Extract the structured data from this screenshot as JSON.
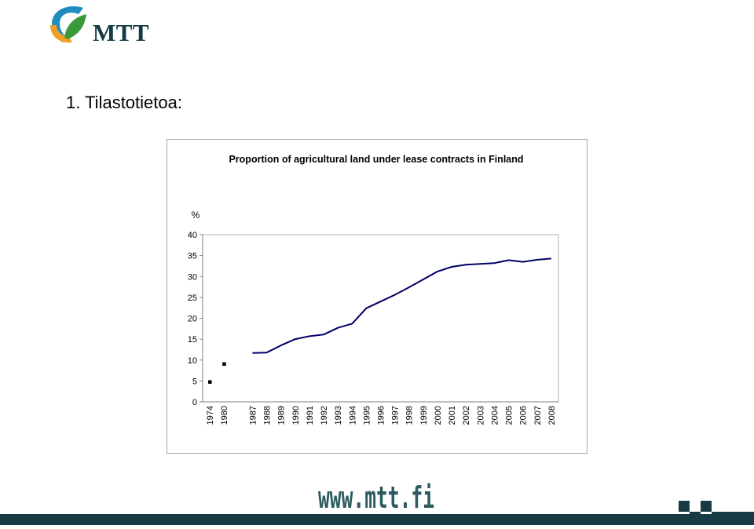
{
  "logo": {
    "text": "MTT"
  },
  "heading": "1. Tilastotietoa:",
  "chart_data": {
    "type": "line",
    "title": "Proportion of agricultural land under lease contracts in Finland",
    "ylabel": "%",
    "xlabel": "",
    "ylim": [
      0,
      40
    ],
    "yticks": [
      0,
      5,
      10,
      15,
      20,
      25,
      30,
      35,
      40
    ],
    "categories": [
      "1974",
      "1980",
      "",
      "1987",
      "1988",
      "1989",
      "1990",
      "1991",
      "1992",
      "1993",
      "1994",
      "1995",
      "1996",
      "1997",
      "1998",
      "1999",
      "2000",
      "2001",
      "2002",
      "2003",
      "2004",
      "2005",
      "2006",
      "2007",
      "2008"
    ],
    "points": [
      {
        "x": "1974",
        "y": 4.8
      },
      {
        "x": "1980",
        "y": 9.1
      }
    ],
    "series": [
      {
        "x": [
          "1987",
          "1988",
          "1989",
          "1990",
          "1991",
          "1992",
          "1993",
          "1994",
          "1995",
          "1996",
          "1997",
          "1998",
          "1999",
          "2000",
          "2001",
          "2002",
          "2003",
          "2004",
          "2005",
          "2006",
          "2007",
          "2008"
        ],
        "values": [
          11.7,
          11.8,
          13.5,
          15.0,
          15.7,
          16.1,
          17.7,
          18.7,
          22.4,
          24.0,
          25.6,
          27.4,
          29.3,
          31.2,
          32.3,
          32.8,
          33.0,
          33.2,
          33.9,
          33.5,
          34.0,
          34.3
        ]
      }
    ],
    "colors": {
      "line": "#000066",
      "marker": "#000000"
    },
    "grid": false
  },
  "footer": {
    "url": "www.mtt.fi"
  }
}
